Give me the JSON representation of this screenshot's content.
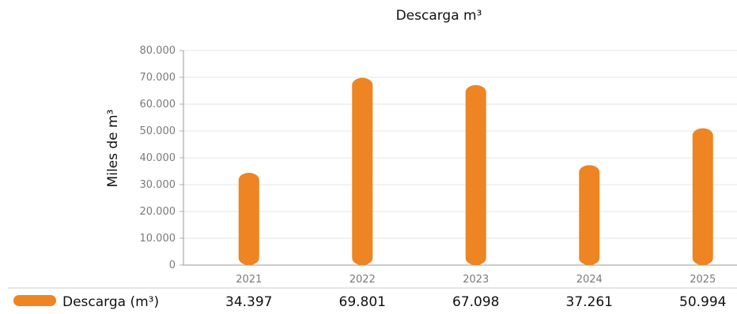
{
  "chart_data": {
    "type": "bar",
    "title": "Descarga m³",
    "ylabel": "Miles de m³",
    "xlabel": "",
    "categories": [
      "2021",
      "2022",
      "2023",
      "2024",
      "2025"
    ],
    "series": [
      {
        "name": "Descarga (m³)",
        "values": [
          34397,
          69801,
          67098,
          37261,
          50994
        ],
        "display_values": [
          "34.397",
          "69.801",
          "67.098",
          "37.261",
          "50.994"
        ],
        "color": "#EE8422"
      }
    ],
    "ylim": [
      0,
      80000
    ],
    "yticks": [
      0,
      10000,
      20000,
      30000,
      40000,
      50000,
      60000,
      70000,
      80000
    ],
    "ytick_labels": [
      "0",
      "10.000",
      "20.000",
      "30.000",
      "40.000",
      "50.000",
      "60.000",
      "70.000",
      "80.000"
    ],
    "grid": true,
    "legend_position": "bottom-left, as data table row",
    "colors": {
      "bar": "#EE8422",
      "grid": "#e6e6e6",
      "tick_text": "#7a7a7a"
    }
  }
}
